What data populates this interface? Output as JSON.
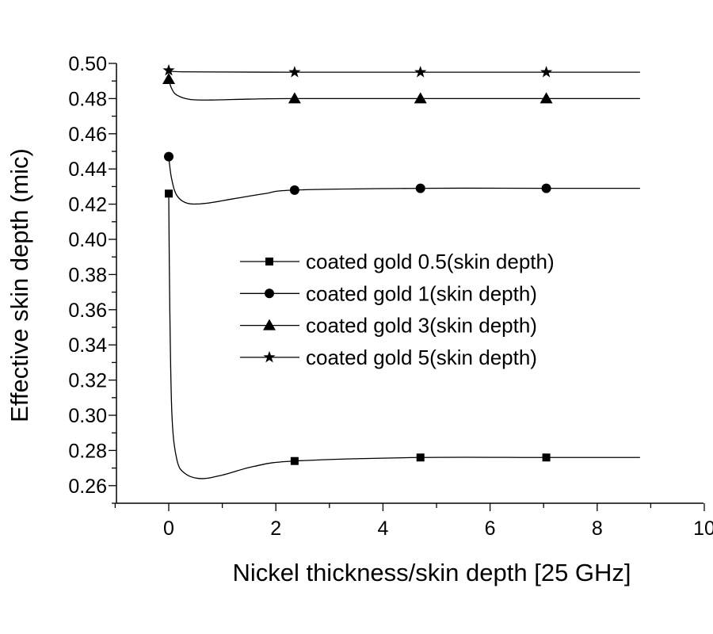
{
  "chart_data": {
    "type": "line",
    "title": "",
    "xlabel": "Nickel thickness/skin depth [25 GHz]",
    "ylabel": "Effective skin depth (mic)",
    "xlim": [
      -1,
      10
    ],
    "ylim": [
      0.25,
      0.5
    ],
    "xticks": [
      "0",
      "2",
      "4",
      "6",
      "8",
      "10"
    ],
    "xtick_values": [
      0,
      2,
      4,
      6,
      8,
      10
    ],
    "yticks": [
      "0.26",
      "0.28",
      "0.30",
      "0.32",
      "0.34",
      "0.36",
      "0.38",
      "0.40",
      "0.42",
      "0.44",
      "0.46",
      "0.48",
      "0.50"
    ],
    "ytick_values": [
      0.26,
      0.28,
      0.3,
      0.32,
      0.34,
      0.36,
      0.38,
      0.4,
      0.42,
      0.44,
      0.46,
      0.48,
      0.5
    ],
    "grid": false,
    "legend_position": "center",
    "series": [
      {
        "name": "coated gold 0.5(skin depth)",
        "marker": "square",
        "x": [
          0,
          2.35,
          4.7,
          7.05
        ],
        "y": [
          0.426,
          0.274,
          0.276,
          0.276
        ],
        "curve": [
          [
            0,
            0.426
          ],
          [
            0.02,
            0.36
          ],
          [
            0.06,
            0.3
          ],
          [
            0.15,
            0.275
          ],
          [
            0.3,
            0.267
          ],
          [
            0.6,
            0.264
          ],
          [
            1.0,
            0.266
          ],
          [
            1.6,
            0.271
          ],
          [
            2.35,
            0.274
          ],
          [
            4.7,
            0.276
          ],
          [
            7.05,
            0.276
          ],
          [
            8.8,
            0.276
          ]
        ]
      },
      {
        "name": "coated gold 1(skin depth)",
        "marker": "circle",
        "x": [
          0,
          2.35,
          4.7,
          7.05
        ],
        "y": [
          0.447,
          0.428,
          0.429,
          0.429
        ],
        "curve": [
          [
            0,
            0.447
          ],
          [
            0.05,
            0.435
          ],
          [
            0.15,
            0.425
          ],
          [
            0.35,
            0.4205
          ],
          [
            0.7,
            0.4205
          ],
          [
            1.2,
            0.423
          ],
          [
            1.8,
            0.426
          ],
          [
            2.35,
            0.428
          ],
          [
            4.7,
            0.429
          ],
          [
            7.05,
            0.429
          ],
          [
            8.8,
            0.429
          ]
        ]
      },
      {
        "name": "coated gold 3(skin depth)",
        "marker": "triangle",
        "x": [
          0,
          2.35,
          4.7,
          7.05
        ],
        "y": [
          0.491,
          0.48,
          0.48,
          0.48
        ],
        "curve": [
          [
            0,
            0.491
          ],
          [
            0.05,
            0.486
          ],
          [
            0.15,
            0.482
          ],
          [
            0.4,
            0.4795
          ],
          [
            0.8,
            0.4792
          ],
          [
            1.5,
            0.4797
          ],
          [
            2.35,
            0.48
          ],
          [
            4.7,
            0.48
          ],
          [
            7.05,
            0.48
          ],
          [
            8.8,
            0.48
          ]
        ]
      },
      {
        "name": "coated gold 5(skin depth)",
        "marker": "star",
        "x": [
          0,
          2.35,
          4.7,
          7.05
        ],
        "y": [
          0.496,
          0.495,
          0.495,
          0.495
        ],
        "curve": [
          [
            0,
            0.496
          ],
          [
            0.3,
            0.4952
          ],
          [
            2.35,
            0.495
          ],
          [
            4.7,
            0.495
          ],
          [
            7.05,
            0.495
          ],
          [
            8.8,
            0.495
          ]
        ]
      }
    ]
  }
}
